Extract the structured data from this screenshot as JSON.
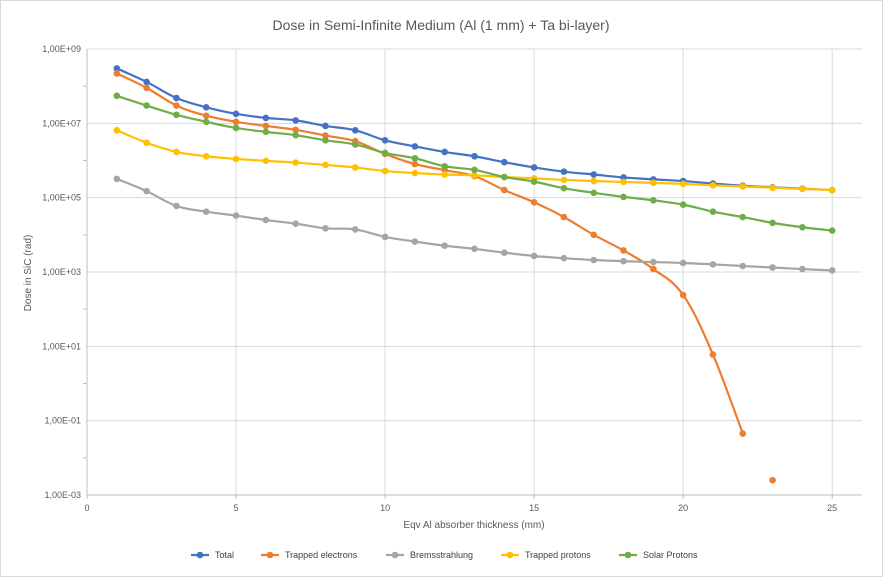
{
  "chart_data": {
    "type": "line",
    "title": "Dose in Semi-Infinite Medium (Al (1 mm) + Ta bi-layer)",
    "xlabel": "Eqv Al absorber thickness (mm)",
    "ylabel": "Dose in SiC (rad)",
    "xlim": [
      0,
      26
    ],
    "ylim": [
      0.001,
      1000000000
    ],
    "y_scale": "log",
    "x_ticks": [
      "0",
      "5",
      "10",
      "15",
      "20",
      "25"
    ],
    "x_tick_values": [
      0,
      5,
      10,
      15,
      20,
      25
    ],
    "y_ticks": [
      "1,00E-03",
      "1,00E-01",
      "1,00E+01",
      "1,00E+03",
      "1,00E+05",
      "1,00E+07",
      "1,00E+09"
    ],
    "y_tick_values": [
      0.001,
      0.1,
      10,
      1000,
      100000,
      10000000,
      1000000000
    ],
    "grid": true,
    "legend_position": "bottom",
    "series": [
      {
        "name": "Total",
        "color": "#4472c4",
        "x": [
          1,
          2,
          3,
          4,
          5,
          6,
          7,
          8,
          9,
          10,
          11,
          12,
          13,
          14,
          15,
          16,
          17,
          18,
          19,
          20,
          21,
          22,
          23,
          24,
          25
        ],
        "y": [
          300000000,
          130000000,
          48000000,
          27000000,
          18000000,
          14000000,
          12000000,
          8500000,
          6500000,
          3500000,
          2400000,
          1700000,
          1300000,
          900000,
          650000,
          500000,
          420000,
          350000,
          310000,
          280000,
          240000,
          210000,
          190000,
          175000,
          160000
        ]
      },
      {
        "name": "Trapped electrons",
        "color": "#ed7d31",
        "x": [
          1,
          2,
          3,
          4,
          5,
          6,
          7,
          8,
          9,
          10,
          11,
          12,
          13,
          14,
          15,
          16,
          17,
          18,
          19,
          20,
          21,
          22,
          23
        ],
        "y": [
          220000000,
          90000000,
          30000000,
          16000000,
          11000000,
          8500000,
          6700000,
          4700000,
          3300000,
          1500000,
          800000,
          550000,
          380000,
          160000,
          75000,
          30000,
          10000,
          3800,
          1200,
          240,
          6,
          0.045,
          0.0025
        ]
      },
      {
        "name": "Bremsstrahlung",
        "color": "#a5a5a5",
        "x": [
          1,
          2,
          3,
          4,
          5,
          6,
          7,
          8,
          9,
          10,
          11,
          12,
          13,
          14,
          15,
          16,
          17,
          18,
          19,
          20,
          21,
          22,
          23,
          24,
          25
        ],
        "y": [
          320000,
          150000,
          60000,
          42000,
          33000,
          25000,
          20000,
          15000,
          14000,
          8800,
          6600,
          5100,
          4200,
          3300,
          2700,
          2350,
          2100,
          1950,
          1850,
          1750,
          1600,
          1450,
          1320,
          1200,
          1100
        ]
      },
      {
        "name": "Trapped protons",
        "color": "#ffc000",
        "x": [
          1,
          2,
          3,
          4,
          5,
          6,
          7,
          8,
          9,
          10,
          11,
          12,
          13,
          14,
          15,
          16,
          17,
          18,
          19,
          20,
          21,
          22,
          23,
          24,
          25
        ],
        "y": [
          6500000,
          3000000,
          1700000,
          1300000,
          1100000,
          980000,
          880000,
          760000,
          650000,
          520000,
          460000,
          420000,
          400000,
          360000,
          330000,
          300000,
          280000,
          265000,
          250000,
          235000,
          215000,
          200000,
          185000,
          172000,
          160000
        ]
      },
      {
        "name": "Solar Protons",
        "color": "#70ad47",
        "x": [
          1,
          2,
          3,
          4,
          5,
          6,
          7,
          8,
          9,
          10,
          11,
          12,
          13,
          14,
          15,
          16,
          17,
          18,
          19,
          20,
          21,
          22,
          23,
          24,
          25
        ],
        "y": [
          55000000,
          30000000,
          17000000,
          11000000,
          7500000,
          5900000,
          4800000,
          3500000,
          2700000,
          1600000,
          1150000,
          700000,
          560000,
          360000,
          270000,
          180000,
          135000,
          105000,
          85000,
          65000,
          42000,
          30000,
          21000,
          16000,
          13000
        ]
      }
    ]
  }
}
